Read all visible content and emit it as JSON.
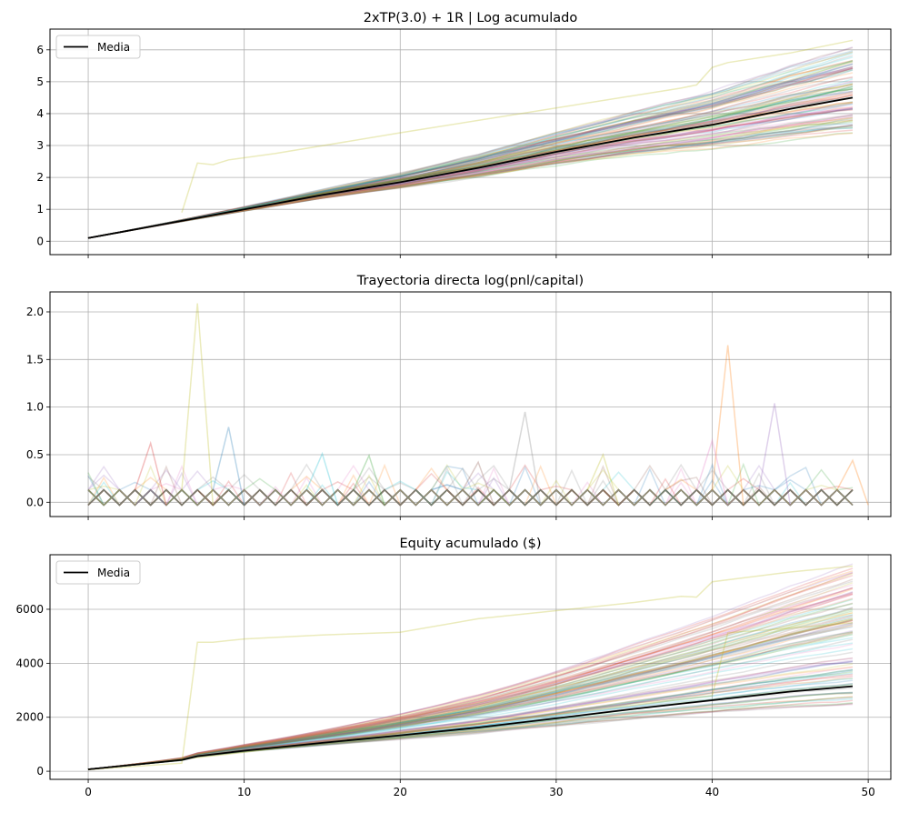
{
  "colors": {
    "mean": "#000000",
    "grid": "#b0b0b0",
    "palette": [
      "#1f77b4",
      "#ff7f0e",
      "#2ca02c",
      "#d62728",
      "#9467bd",
      "#8c564b",
      "#e377c2",
      "#7f7f7f",
      "#bcbd22",
      "#17becf"
    ]
  },
  "chart_data": [
    {
      "type": "line",
      "title": "2xTP(3.0) + 1R | Log acumulado",
      "xlabel": "",
      "ylabel": "",
      "xlim": [
        -2.45,
        51.45
      ],
      "ylim": [
        -0.42,
        6.65
      ],
      "xticks": [
        0,
        10,
        20,
        30,
        40,
        50
      ],
      "xtick_labels": [
        "",
        "",
        "",
        "",
        "",
        ""
      ],
      "yticks": [
        0,
        1,
        2,
        3,
        4,
        5,
        6
      ],
      "ytick_labels": [
        "0",
        "1",
        "2",
        "3",
        "4",
        "5",
        "6"
      ],
      "grid": true,
      "legend": {
        "position": "upper-left",
        "entries": [
          "Media"
        ]
      },
      "series": [
        {
          "name": "Media",
          "role": "mean",
          "x": [
            0,
            5,
            10,
            15,
            20,
            25,
            30,
            35,
            40,
            45,
            49
          ],
          "y": [
            0.1,
            0.55,
            1.0,
            1.45,
            1.85,
            2.3,
            2.8,
            3.25,
            3.65,
            4.15,
            4.5
          ]
        }
      ],
      "background_paths": {
        "count": 100,
        "alpha": 0.2,
        "kind": "cumulative-log",
        "final_range": [
          3.4,
          6.3
        ],
        "highlighted": [
          {
            "x": [
              6,
              7,
              8,
              9,
              12,
              20,
              38,
              39,
              40,
              41,
              45,
              49
            ],
            "y": [
              0.9,
              2.45,
              2.4,
              2.55,
              2.75,
              3.4,
              4.8,
              4.9,
              5.45,
              5.6,
              5.9,
              6.3
            ]
          }
        ]
      }
    },
    {
      "type": "line",
      "title": "Trayectoria directa log(pnl/capital)",
      "xlabel": "",
      "ylabel": "",
      "xlim": [
        -2.45,
        51.45
      ],
      "ylim": [
        -0.15,
        2.21
      ],
      "xticks": [
        0,
        10,
        20,
        30,
        40,
        50
      ],
      "xtick_labels": [
        "",
        "",
        "",
        "",
        "",
        ""
      ],
      "yticks": [
        0.0,
        0.5,
        1.0,
        1.5,
        2.0
      ],
      "ytick_labels": [
        "0.0",
        "0.5",
        "1.0",
        "1.5",
        "2.0"
      ],
      "grid": true,
      "legend": null,
      "background_paths": {
        "count": 100,
        "alpha": 0.2,
        "kind": "per-step-log-return",
        "levels": [
          -0.03,
          0.13
        ],
        "spikes": [
          {
            "x": 7,
            "y": 2.09
          },
          {
            "x": 41,
            "y": 1.65
          },
          {
            "x": 44,
            "y": 1.04
          },
          {
            "x": 28,
            "y": 0.95
          },
          {
            "x": 9,
            "y": 0.79
          },
          {
            "x": 4,
            "y": 0.62
          },
          {
            "x": 40,
            "y": 0.65
          },
          {
            "x": 15,
            "y": 0.51
          },
          {
            "x": 18,
            "y": 0.49
          },
          {
            "x": 25,
            "y": 0.42
          },
          {
            "x": 33,
            "y": 0.5
          },
          {
            "x": 49,
            "y": 0.44
          }
        ]
      }
    },
    {
      "type": "line",
      "title": "Equity acumulado ($)",
      "xlabel": "",
      "ylabel": "",
      "xlim": [
        -2.45,
        51.45
      ],
      "ylim": [
        -300,
        8020
      ],
      "xticks": [
        0,
        10,
        20,
        30,
        40,
        50
      ],
      "xtick_labels": [
        "0",
        "10",
        "20",
        "30",
        "40",
        "50"
      ],
      "yticks": [
        0,
        2000,
        4000,
        6000
      ],
      "ytick_labels": [
        "0",
        "2000",
        "4000",
        "6000"
      ],
      "grid": true,
      "legend": {
        "position": "upper-left",
        "entries": [
          "Media"
        ]
      },
      "series": [
        {
          "name": "Media",
          "role": "mean",
          "x": [
            0,
            6,
            7,
            10,
            15,
            20,
            25,
            30,
            35,
            40,
            45,
            49
          ],
          "y": [
            70,
            420,
            560,
            760,
            1050,
            1330,
            1620,
            1960,
            2310,
            2630,
            2950,
            3150
          ]
        }
      ],
      "background_paths": {
        "count": 100,
        "alpha": 0.2,
        "kind": "equity",
        "final_range": [
          2300,
          7600
        ],
        "highlighted": [
          {
            "x": [
              0,
              6,
              7,
              8,
              10,
              15,
              20,
              25,
              30,
              35,
              38,
              39,
              40,
              45,
              49
            ],
            "y": [
              60,
              300,
              4780,
              4780,
              4900,
              5050,
              5150,
              5650,
              5950,
              6250,
              6480,
              6450,
              7020,
              7380,
              7600
            ]
          },
          {
            "x": [
              0,
              10,
              20,
              30,
              40,
              41,
              45,
              49
            ],
            "y": [
              60,
              700,
              1400,
              2100,
              2800,
              5130,
              5300,
              5500
            ]
          }
        ]
      }
    }
  ]
}
